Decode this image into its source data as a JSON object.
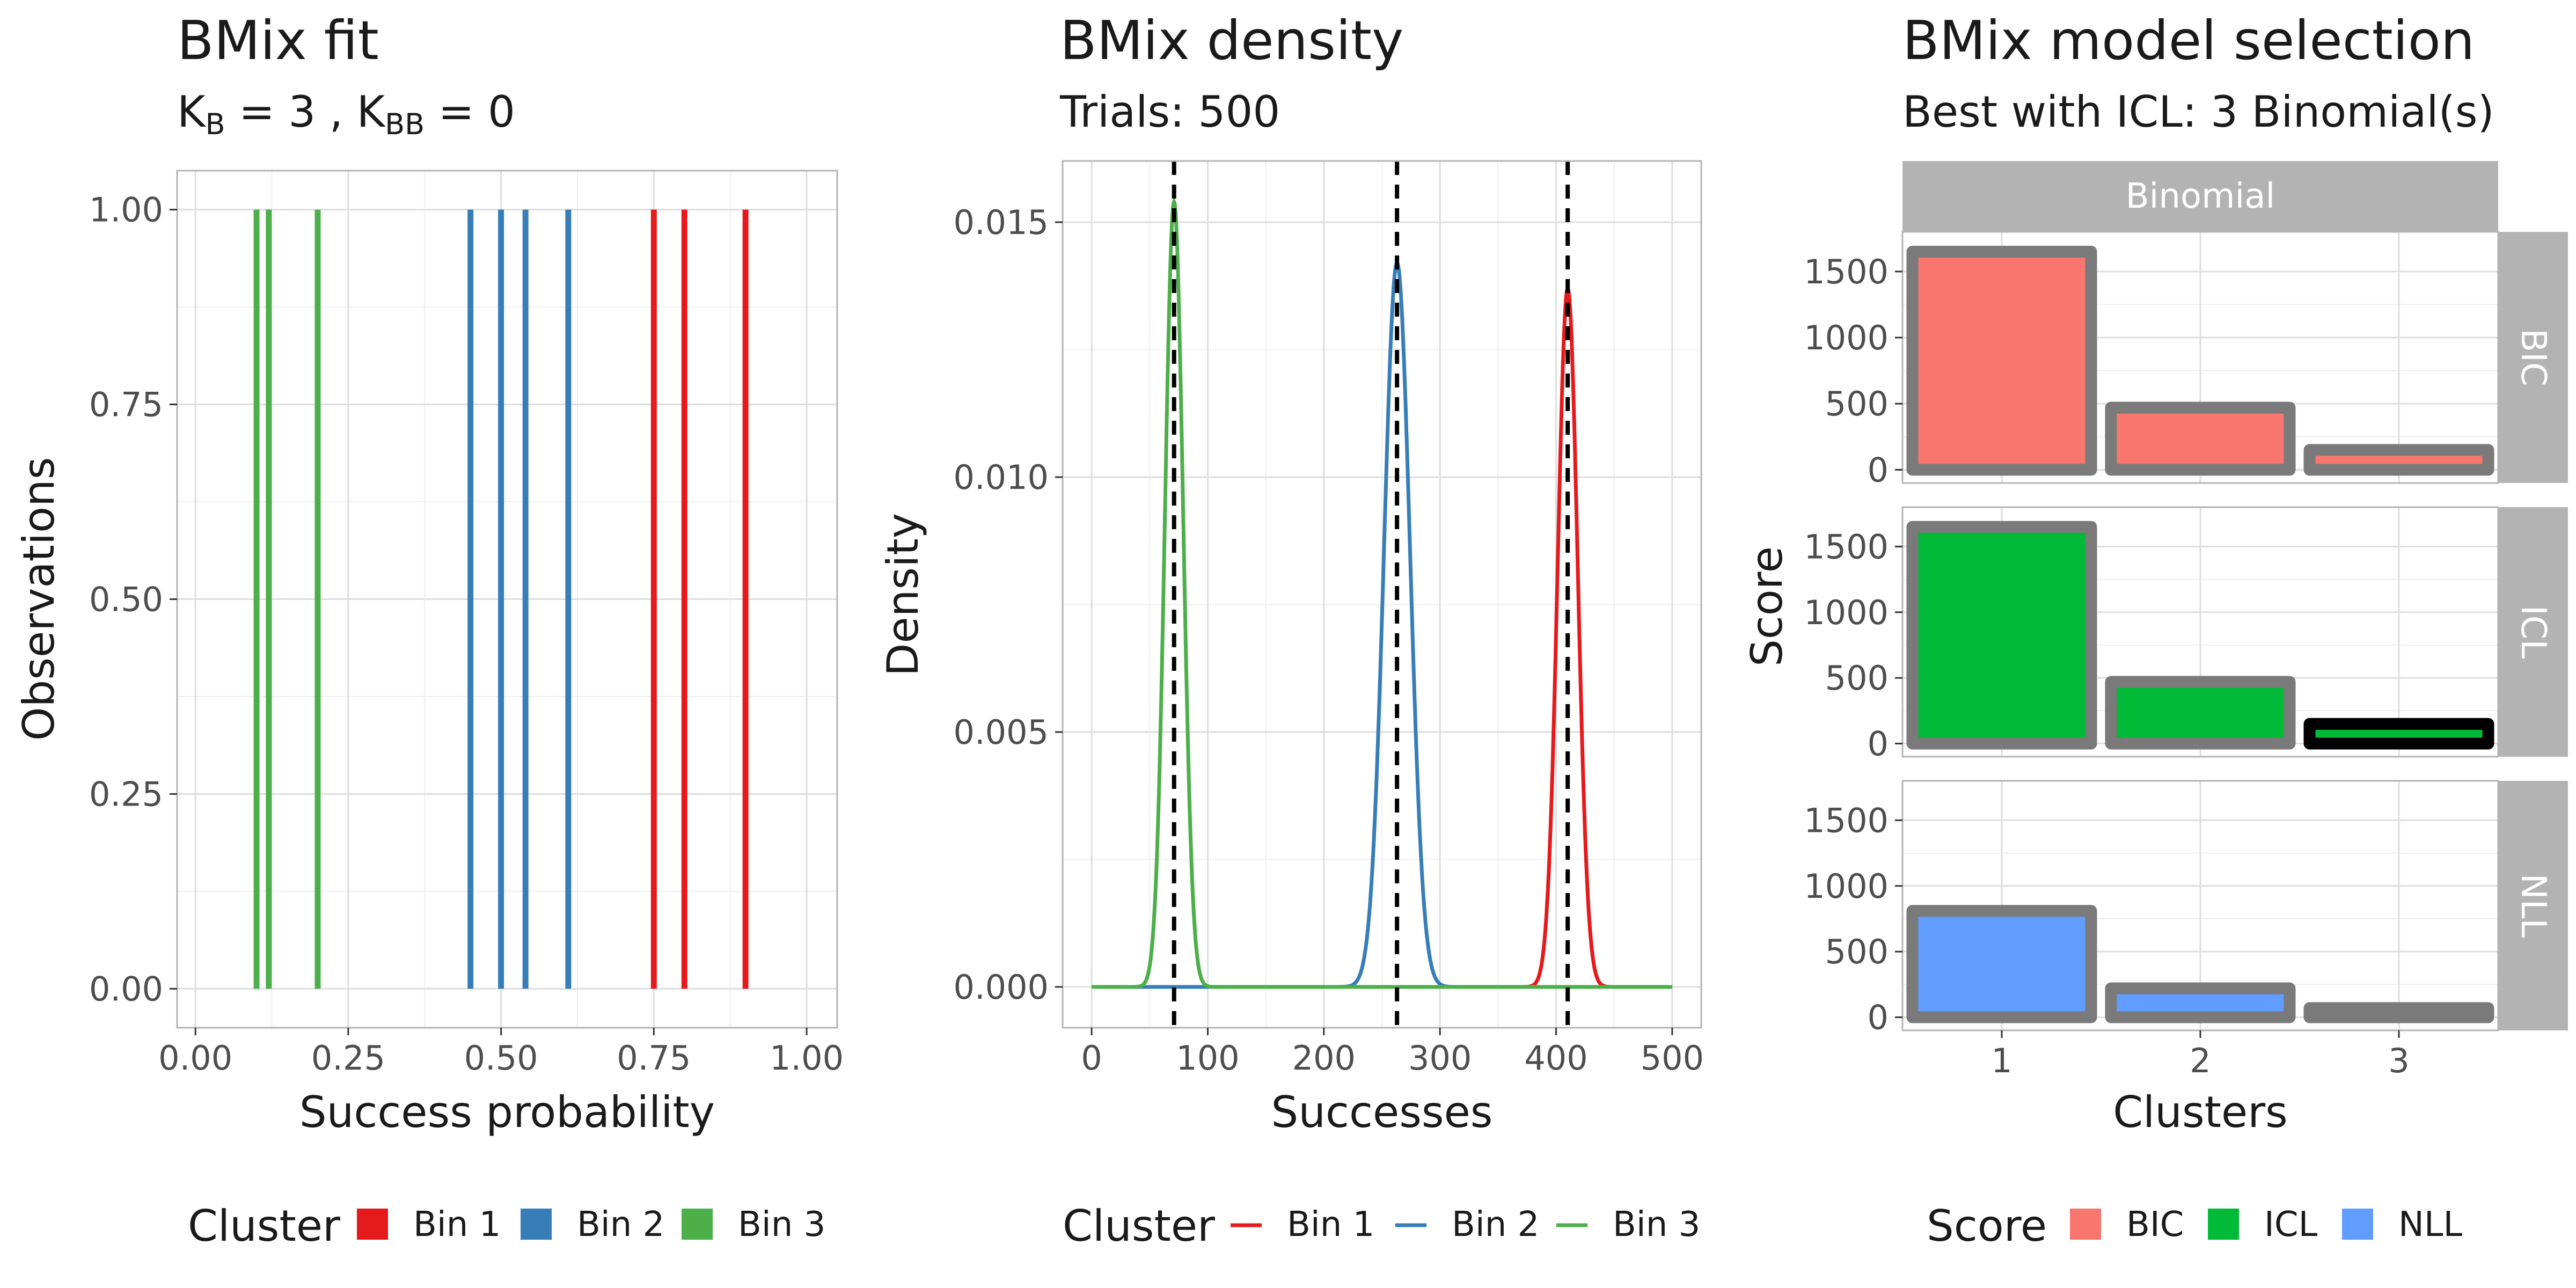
{
  "chart_data": [
    {
      "type": "line",
      "title": "BMix fit",
      "subtitle_parts": {
        "k": "K",
        "b": "B",
        "eq1": " = 3 , ",
        "bb": "BB",
        "eq2": " = 0"
      },
      "xlabel": "Success probability",
      "ylabel": "Observations",
      "xlim": [
        -0.03,
        1.05
      ],
      "ylim": [
        -0.05,
        1.05
      ],
      "xticks": [
        0,
        0.25,
        0.5,
        0.75,
        1
      ],
      "xtick_labels": [
        "0.00",
        "0.25",
        "0.50",
        "0.75",
        "1.00"
      ],
      "yticks": [
        0,
        0.25,
        0.5,
        0.75,
        1
      ],
      "ytick_labels": [
        "0.00",
        "0.25",
        "0.50",
        "0.75",
        "1.00"
      ],
      "grid": true,
      "legend_title": "Cluster",
      "legend_position": "bottom",
      "series": [
        {
          "name": "Bin 1",
          "color": "#e41a1c",
          "x": [
            0.75,
            0.8,
            0.9
          ]
        },
        {
          "name": "Bin 2",
          "color": "#377eb8",
          "x": [
            0.45,
            0.5,
            0.54,
            0.61
          ]
        },
        {
          "name": "Bin 3",
          "color": "#4daf4a",
          "x": [
            0.1,
            0.12,
            0.2
          ]
        }
      ]
    },
    {
      "type": "line",
      "title": "BMix density",
      "subtitle": "Trials: 500",
      "xlabel": "Successes",
      "ylabel": "Density",
      "xlim": [
        -25,
        525
      ],
      "ylim": [
        -0.0008,
        0.0162
      ],
      "xticks": [
        0,
        100,
        200,
        300,
        400,
        500
      ],
      "xtick_labels": [
        "0",
        "100",
        "200",
        "300",
        "400",
        "500"
      ],
      "yticks": [
        0,
        0.005,
        0.01,
        0.015
      ],
      "ytick_labels": [
        "0.000",
        "0.005",
        "0.010",
        "0.015"
      ],
      "grid": true,
      "legend_title": "Cluster",
      "legend_position": "bottom",
      "trials": 500,
      "series": [
        {
          "name": "Bin 1",
          "color": "#e41a1c",
          "mean": 410,
          "peak": 0.0137
        },
        {
          "name": "Bin 2",
          "color": "#377eb8",
          "mean": 263,
          "peak": 0.0142
        },
        {
          "name": "Bin 3",
          "color": "#4daf4a",
          "mean": 71,
          "peak": 0.0154
        }
      ],
      "dashed_lines_x": [
        71,
        263,
        410
      ]
    },
    {
      "type": "bar",
      "title": "BMix model selection",
      "subtitle": "Best with ICL: 3 Binomial(s)",
      "xlabel": "Clusters",
      "ylabel": "Score",
      "column_strip": "Binomial",
      "categories": [
        "1",
        "2",
        "3"
      ],
      "ylim": [
        -100,
        1800
      ],
      "yticks": [
        0,
        500,
        1000,
        1500
      ],
      "ytick_labels": [
        "0",
        "500",
        "1000",
        "1500"
      ],
      "grid": true,
      "legend_title": "Score",
      "legend_position": "bottom",
      "best": {
        "panel": "ICL",
        "cluster": "3"
      },
      "panels": [
        {
          "name": "BIC",
          "color": "#f8766d",
          "values": [
            1650,
            470,
            150
          ]
        },
        {
          "name": "ICL",
          "color": "#00ba38",
          "values": [
            1650,
            470,
            150
          ]
        },
        {
          "name": "NLL",
          "color": "#619cff",
          "values": [
            810,
            220,
            70
          ]
        }
      ]
    }
  ]
}
